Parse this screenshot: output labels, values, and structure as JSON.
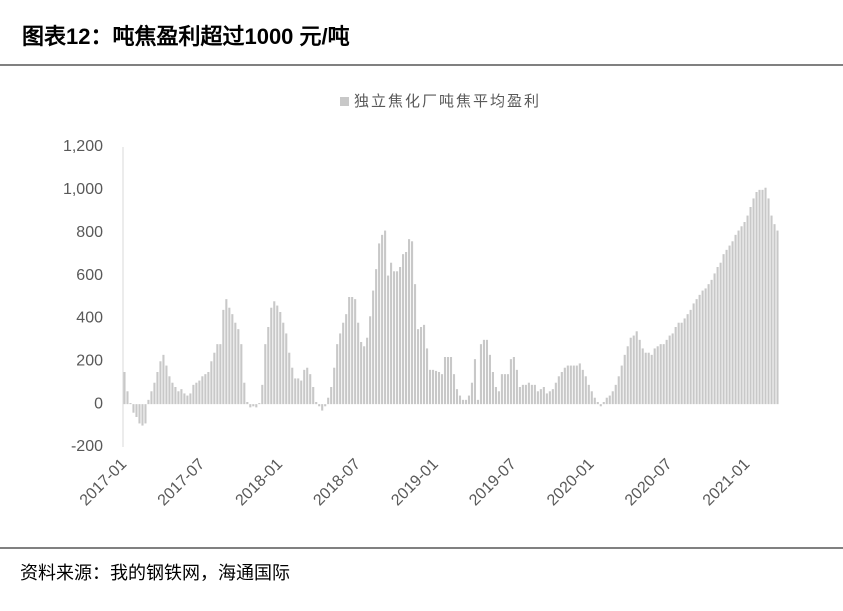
{
  "chart_data": {
    "type": "bar",
    "title": "图表12：吨焦盈利超过1000 元/吨",
    "source": "资料来源：我的钢铁网，海通国际",
    "color": "#c8c8c8",
    "grid": false,
    "legend": "top",
    "ylim": [
      -200,
      1200
    ],
    "yticks": [
      -200,
      0,
      200,
      400,
      600,
      800,
      {
        "value": 1000,
        "label": "1,000"
      },
      {
        "value": 1200,
        "label": "1,200"
      }
    ],
    "categories": [
      "2017-01",
      null,
      null,
      null,
      null,
      null,
      null,
      null,
      null,
      null,
      null,
      null,
      null,
      null,
      null,
      null,
      null,
      null,
      null,
      null,
      null,
      null,
      null,
      null,
      null,
      null,
      "2017-07",
      null,
      null,
      null,
      null,
      null,
      null,
      null,
      null,
      null,
      null,
      null,
      null,
      null,
      null,
      null,
      null,
      null,
      null,
      null,
      null,
      null,
      null,
      null,
      null,
      null,
      "2018-01",
      null,
      null,
      null,
      null,
      null,
      null,
      null,
      null,
      null,
      null,
      null,
      null,
      null,
      null,
      null,
      null,
      null,
      null,
      null,
      null,
      null,
      null,
      null,
      null,
      null,
      "2018-07",
      null,
      null,
      null,
      null,
      null,
      null,
      null,
      null,
      null,
      null,
      null,
      null,
      null,
      null,
      null,
      null,
      null,
      null,
      null,
      null,
      null,
      null,
      null,
      null,
      null,
      "2019-01",
      null,
      null,
      null,
      null,
      null,
      null,
      null,
      null,
      null,
      null,
      null,
      null,
      null,
      null,
      null,
      null,
      null,
      null,
      null,
      null,
      null,
      null,
      null,
      null,
      null,
      "2019-07",
      null,
      null,
      null,
      null,
      null,
      null,
      null,
      null,
      null,
      null,
      null,
      null,
      null,
      null,
      null,
      null,
      null,
      null,
      null,
      null,
      null,
      null,
      null,
      null,
      null,
      "2020-01",
      null,
      null,
      null,
      null,
      null,
      null,
      null,
      null,
      null,
      null,
      null,
      null,
      null,
      null,
      null,
      null,
      null,
      null,
      null,
      null,
      null,
      null,
      null,
      null,
      null,
      "2020-07",
      null,
      null,
      null,
      null,
      null,
      null,
      null,
      null,
      null,
      null,
      null,
      null,
      null,
      null,
      null,
      null,
      null,
      null,
      null,
      null,
      null,
      null,
      null,
      null,
      null,
      "2021-01",
      null,
      null,
      null,
      null,
      null,
      null,
      null,
      null,
      null,
      null
    ],
    "series": [
      {
        "name": "独立焦化厂吨焦平均盈利",
        "color": "#c8c8c8",
        "values": [
          150,
          60,
          5,
          -40,
          -60,
          -90,
          -100,
          -90,
          20,
          60,
          100,
          150,
          200,
          230,
          180,
          130,
          100,
          80,
          60,
          70,
          50,
          40,
          50,
          90,
          100,
          110,
          130,
          140,
          150,
          200,
          240,
          280,
          280,
          440,
          490,
          450,
          420,
          380,
          350,
          280,
          100,
          10,
          -15,
          -10,
          -15,
          5,
          90,
          280,
          360,
          450,
          480,
          460,
          430,
          380,
          330,
          240,
          170,
          120,
          120,
          110,
          160,
          170,
          140,
          80,
          10,
          -10,
          -30,
          -10,
          30,
          80,
          170,
          280,
          330,
          380,
          420,
          500,
          500,
          490,
          380,
          290,
          270,
          310,
          410,
          530,
          630,
          750,
          790,
          810,
          600,
          660,
          620,
          620,
          640,
          700,
          710,
          770,
          760,
          560,
          350,
          360,
          370,
          260,
          160,
          160,
          155,
          150,
          140,
          220,
          220,
          220,
          140,
          70,
          40,
          20,
          20,
          40,
          100,
          210,
          20,
          280,
          300,
          300,
          230,
          150,
          80,
          60,
          140,
          140,
          140,
          210,
          220,
          160,
          80,
          90,
          90,
          100,
          90,
          90,
          60,
          70,
          80,
          50,
          60,
          70,
          100,
          130,
          150,
          170,
          180,
          180,
          180,
          180,
          190,
          160,
          130,
          90,
          60,
          30,
          10,
          -10,
          10,
          30,
          40,
          60,
          90,
          130,
          180,
          230,
          270,
          310,
          320,
          340,
          300,
          260,
          240,
          240,
          230,
          260,
          270,
          280,
          280,
          300,
          320,
          330,
          360,
          380,
          380,
          400,
          420,
          440,
          470,
          490,
          510,
          530,
          540,
          560,
          580,
          610,
          640,
          660,
          700,
          720,
          740,
          760,
          790,
          810,
          830,
          850,
          880,
          920,
          960,
          990,
          1000,
          1000,
          1010,
          960,
          880,
          840,
          810
        ]
      }
    ]
  }
}
